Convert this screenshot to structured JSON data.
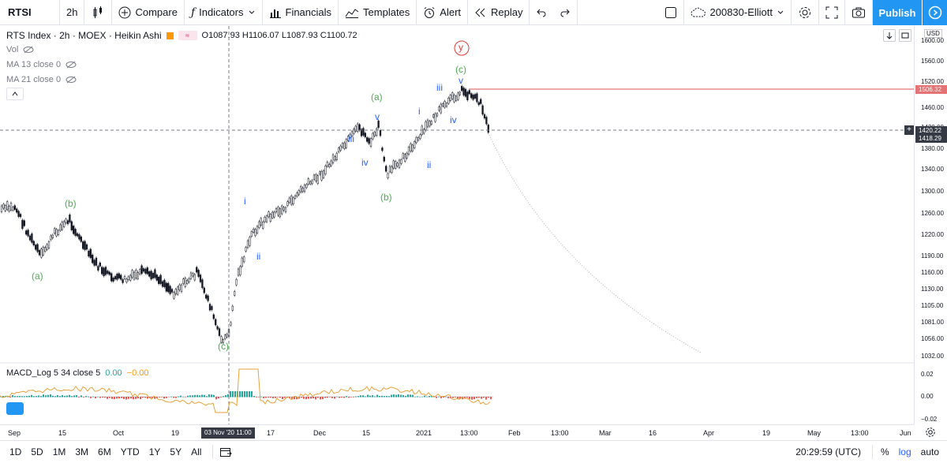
{
  "toolbar": {
    "symbol": "RTSI",
    "interval": "2h",
    "compare": "Compare",
    "indicators": "Indicators",
    "financials": "Financials",
    "templates": "Templates",
    "alert": "Alert",
    "replay": "Replay",
    "layout_name": "200830-Elliott",
    "publish": "Publish"
  },
  "legend": {
    "title": "RTS Index · 2h · MOEX · Heikin Ashi",
    "ohlc": "O1087.93  H1106.07  L1087.93  C1100.72",
    "vol": "Vol",
    "ma13": "MA 13 close 0",
    "ma21": "MA 21 close 0"
  },
  "macd": {
    "name": "MACD_Log 5 34 close 5",
    "v1": "0.00",
    "v2": "−0.00",
    "ticks": [
      "0.02",
      "0.00",
      "−0.02"
    ]
  },
  "yaxis": {
    "currency": "USD",
    "ticks": [
      "1640.00",
      "1600.00",
      "1560.00",
      "1520.00",
      "1460.00",
      "1420.00",
      "1380.00",
      "1340.00",
      "1300.00",
      "1260.00",
      "1220.00",
      "1190.00",
      "1160.00",
      "1130.00",
      "1105.00",
      "1081.00",
      "1056.00",
      "1032.00"
    ],
    "resistance_label": "1506.32",
    "price_label": "1420.22",
    "price_label2": "1418.29"
  },
  "xaxis": {
    "ticks": [
      "Sep",
      "15",
      "Oct",
      "19",
      "17",
      "Dec",
      "15",
      "2021",
      "13:00",
      "Feb",
      "13:00",
      "Mar",
      "16",
      "Apr",
      "19",
      "May",
      "13:00",
      "Jun"
    ],
    "crosshair_label": "03 Nov '20  11:00"
  },
  "waves": {
    "a1": "(a)",
    "b1": "(b)",
    "c1": "(c)",
    "i1": "i",
    "ii1": "ii",
    "iii1": "iii",
    "iv1": "iv",
    "v1": "v",
    "a2": "(a)",
    "b2": "(b)",
    "i2": "i",
    "ii2": "ii",
    "iii2": "iii",
    "iv2": "iv",
    "v2": "v",
    "c2": "(c)",
    "y": "y"
  },
  "bottom": {
    "ranges": [
      "1D",
      "5D",
      "1M",
      "3M",
      "6M",
      "YTD",
      "1Y",
      "5Y",
      "All"
    ],
    "time": "20:29:59 (UTC)",
    "pct": "%",
    "log": "log",
    "auto": "auto"
  },
  "colors": {
    "accent": "#2196f3",
    "green": "#4caf50",
    "blue": "#2962ff",
    "red": "#e53935"
  }
}
